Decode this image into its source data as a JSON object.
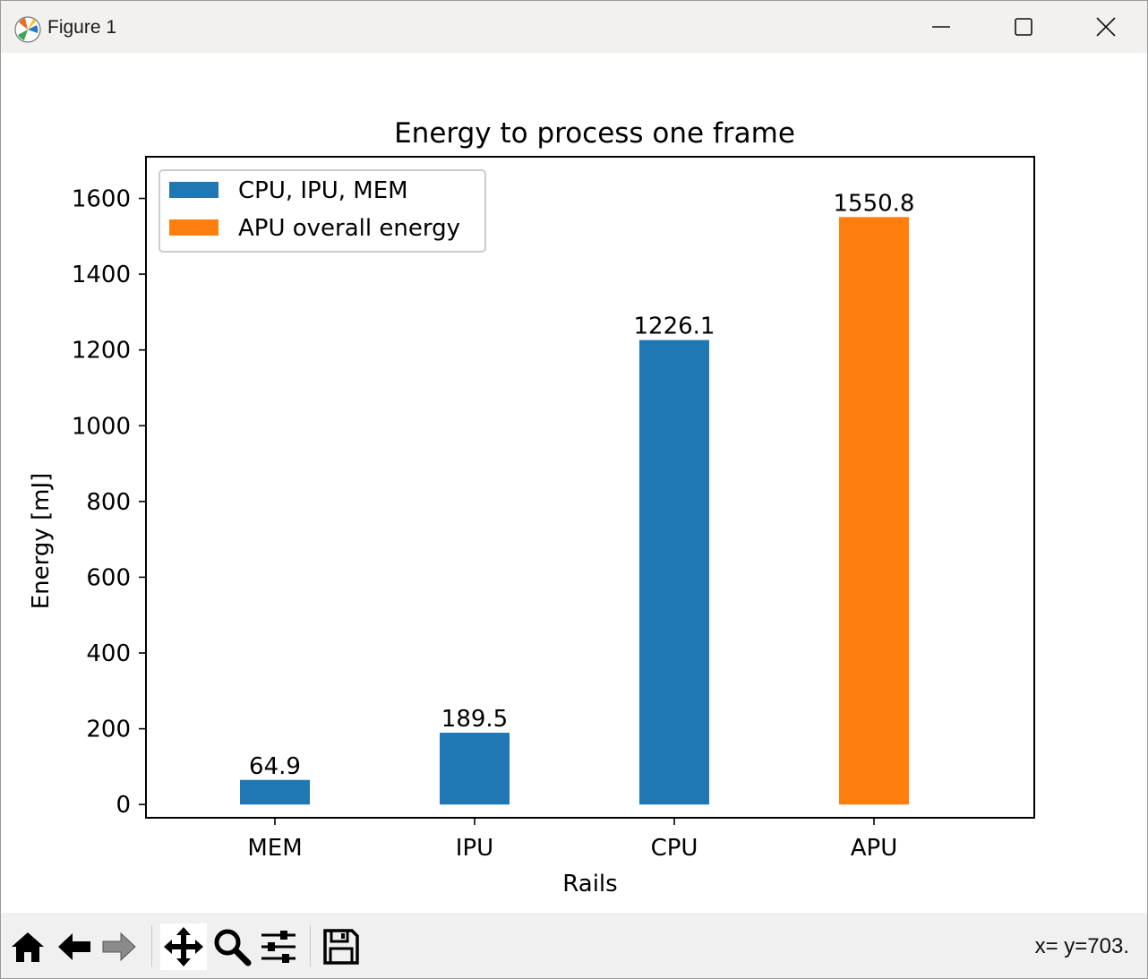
{
  "window": {
    "title": "Figure 1"
  },
  "toolbar": {
    "buttons": [
      {
        "name": "home-icon"
      },
      {
        "name": "back-arrow-icon"
      },
      {
        "name": "forward-arrow-icon"
      },
      {
        "name": "pan-icon"
      },
      {
        "name": "zoom-icon"
      },
      {
        "name": "configure-subplots-icon"
      },
      {
        "name": "save-icon"
      }
    ],
    "status": "x= y=703."
  },
  "chart_data": {
    "type": "bar",
    "title": "Energy to process one frame",
    "xlabel": "Rails",
    "ylabel": "Energy [mJ]",
    "categories": [
      "MEM",
      "IPU",
      "CPU",
      "APU"
    ],
    "series": [
      {
        "name": "CPU, IPU, MEM",
        "color": "#1f77b4",
        "values": [
          64.9,
          189.5,
          1226.1,
          null
        ]
      },
      {
        "name": "APU overall energy",
        "color": "#ff7f0e",
        "values": [
          null,
          null,
          null,
          1550.8
        ]
      }
    ],
    "value_labels": [
      "64.9",
      "189.5",
      "1226.1",
      "1550.8"
    ],
    "ylim": [
      -35,
      1710
    ],
    "yticks": [
      0,
      200,
      400,
      600,
      800,
      1000,
      1200,
      1400,
      1600
    ],
    "grid": false,
    "legend_position": "top-left"
  }
}
